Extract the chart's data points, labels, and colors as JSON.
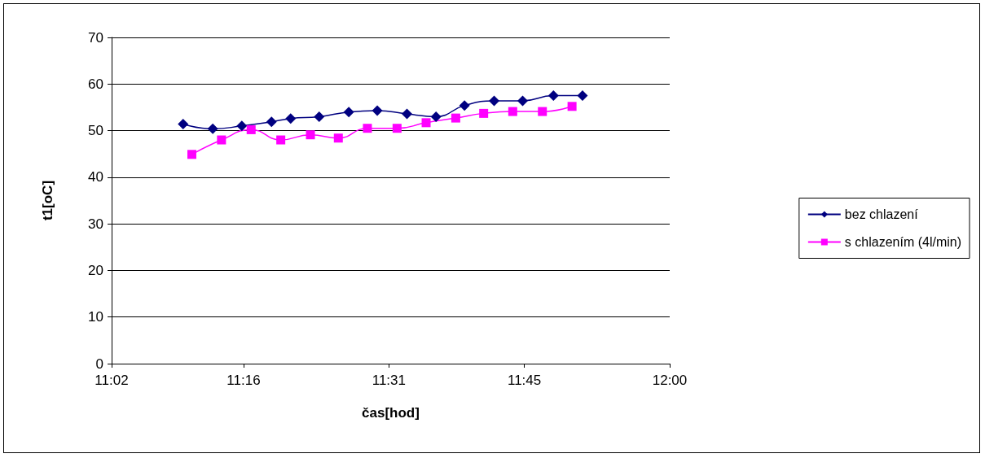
{
  "chart_data": {
    "type": "line",
    "xlabel": "čas[hod]",
    "ylabel": "t1[oC]",
    "xlim": [
      11.04,
      12
    ],
    "xticks": [
      {
        "value": 11.04,
        "label": "11:02"
      },
      {
        "value": 11.267,
        "label": "11:16"
      },
      {
        "value": 11.517,
        "label": "11:31"
      },
      {
        "value": 11.75,
        "label": "11:45"
      },
      {
        "value": 12,
        "label": "12:00"
      }
    ],
    "ylim": [
      0,
      70
    ],
    "yticks": [
      0,
      10,
      20,
      30,
      40,
      50,
      60,
      70
    ],
    "grid": "y",
    "legend": "right",
    "series": [
      {
        "name": "bez chlazení",
        "color": "#000080",
        "marker": "diamond",
        "x": [
          11.163,
          11.214,
          11.264,
          11.315,
          11.348,
          11.397,
          11.448,
          11.497,
          11.548,
          11.598,
          11.647,
          11.698,
          11.747,
          11.8,
          11.85
        ],
        "values": [
          51.4,
          50.4,
          51.0,
          51.9,
          52.6,
          53.0,
          54.0,
          54.3,
          53.6,
          53.0,
          55.4,
          56.4,
          56.4,
          57.5,
          57.5
        ]
      },
      {
        "name": "s chlazením (4l/min)",
        "color": "#ff00ff",
        "marker": "square",
        "x": [
          11.178,
          11.229,
          11.28,
          11.331,
          11.382,
          11.43,
          11.48,
          11.531,
          11.581,
          11.632,
          11.68,
          11.73,
          11.781,
          11.832
        ],
        "values": [
          44.9,
          48.0,
          50.2,
          48.0,
          49.1,
          48.4,
          50.5,
          50.5,
          51.7,
          52.7,
          53.7,
          54.1,
          54.1,
          55.2
        ]
      }
    ]
  }
}
